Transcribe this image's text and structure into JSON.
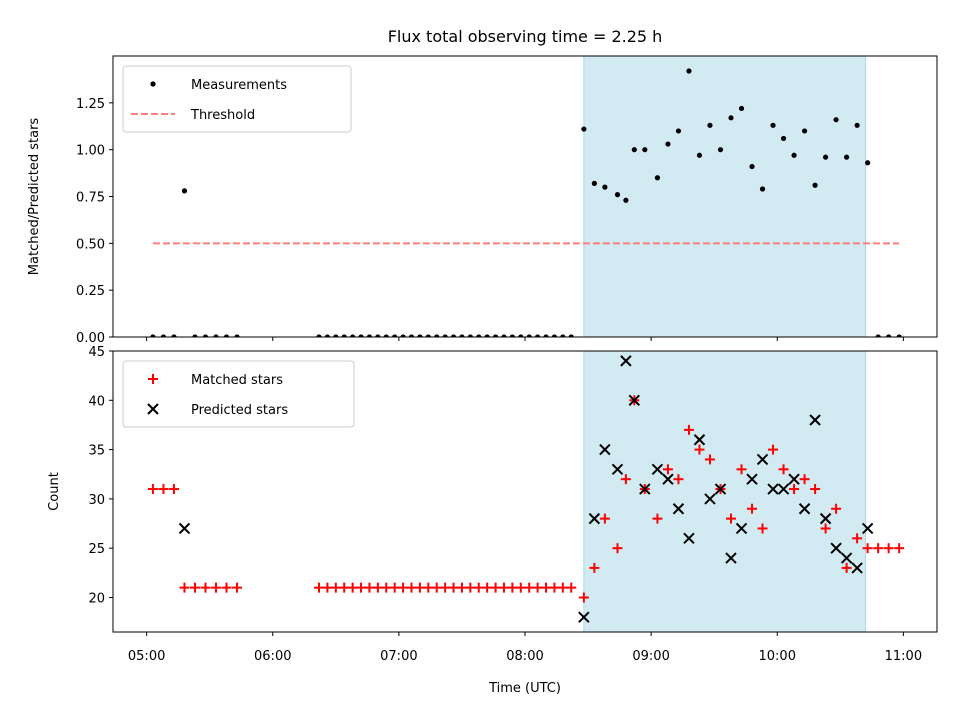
{
  "chart_data": {
    "title": "Flux total observing time = 2.25 h",
    "shaded_region": {
      "start": "08:28",
      "end": "10:42",
      "color": "#add8e6"
    },
    "xlabel": "Time (UTC)",
    "xlim": [
      "04:44",
      "11:16"
    ],
    "x_ticks": [
      "05:00",
      "06:00",
      "07:00",
      "08:00",
      "09:00",
      "10:00",
      "11:00"
    ],
    "x_tick_times": [
      "05:00",
      "06:00",
      "07:00",
      "08:00",
      "09:00",
      "10:00",
      "11:00"
    ],
    "panels": [
      {
        "type": "scatter",
        "ylabel": "Matched/Predicted stars",
        "ylim": [
          0,
          1.5
        ],
        "y_ticks": [
          "0.00",
          "0.25",
          "0.50",
          "0.75",
          "1.00",
          "1.25"
        ],
        "y_tick_values": [
          0,
          0.25,
          0.5,
          0.75,
          1.0,
          1.25
        ],
        "legend": {
          "position": "upper-left",
          "entries": [
            "Measurements",
            "Threshold"
          ]
        },
        "threshold": {
          "name": "Threshold",
          "value": 0.5,
          "x_start": "05:03",
          "x_end": "10:58",
          "color": "#ff7f7f"
        },
        "series": [
          {
            "name": "Measurements",
            "color": "#000000",
            "marker": "dot",
            "x": [
              "05:03",
              "05:08",
              "05:13",
              "05:18",
              "05:23",
              "05:28",
              "05:33",
              "05:38",
              "05:43",
              "06:22",
              "06:26",
              "06:30",
              "06:34",
              "06:38",
              "06:42",
              "06:46",
              "06:50",
              "06:54",
              "06:58",
              "07:02",
              "07:06",
              "07:10",
              "07:14",
              "07:18",
              "07:22",
              "07:26",
              "07:30",
              "07:34",
              "07:38",
              "07:42",
              "07:46",
              "07:50",
              "07:54",
              "07:58",
              "08:02",
              "08:06",
              "08:10",
              "08:14",
              "08:18",
              "08:22",
              "08:28",
              "08:33",
              "08:38",
              "08:44",
              "08:48",
              "08:52",
              "08:57",
              "09:03",
              "09:08",
              "09:13",
              "09:18",
              "09:23",
              "09:28",
              "09:33",
              "09:38",
              "09:43",
              "09:48",
              "09:53",
              "09:58",
              "10:03",
              "10:08",
              "10:13",
              "10:18",
              "10:23",
              "10:28",
              "10:33",
              "10:38",
              "10:43",
              "10:48",
              "10:53",
              "10:58"
            ],
            "y": [
              0,
              0,
              0,
              0.78,
              0,
              0,
              0,
              0,
              0,
              0,
              0,
              0,
              0,
              0,
              0,
              0,
              0,
              0,
              0,
              0,
              0,
              0,
              0,
              0,
              0,
              0,
              0,
              0,
              0,
              0,
              0,
              0,
              0,
              0,
              0,
              0,
              0,
              0,
              0,
              0,
              1.11,
              0.82,
              0.8,
              0.76,
              0.73,
              1.0,
              1.0,
              0.85,
              1.03,
              1.1,
              1.42,
              0.97,
              1.13,
              1.0,
              1.17,
              1.22,
              0.91,
              0.79,
              1.13,
              1.06,
              0.97,
              1.1,
              0.81,
              0.96,
              1.16,
              0.96,
              1.13,
              0.93,
              0,
              0,
              0
            ]
          }
        ]
      },
      {
        "type": "scatter",
        "ylabel": "Count",
        "ylim": [
          16.5,
          45
        ],
        "y_ticks": [
          "20",
          "25",
          "30",
          "35",
          "40",
          "45"
        ],
        "y_tick_values": [
          20,
          25,
          30,
          35,
          40,
          45
        ],
        "legend": {
          "position": "upper-left",
          "entries": [
            "Matched stars",
            "Predicted stars"
          ]
        },
        "series": [
          {
            "name": "Matched stars",
            "color": "#ff0000",
            "marker": "plus",
            "x": [
              "05:03",
              "05:08",
              "05:13",
              "05:18",
              "05:23",
              "05:28",
              "05:33",
              "05:38",
              "05:43",
              "06:22",
              "06:26",
              "06:30",
              "06:34",
              "06:38",
              "06:42",
              "06:46",
              "06:50",
              "06:54",
              "06:58",
              "07:02",
              "07:06",
              "07:10",
              "07:14",
              "07:18",
              "07:22",
              "07:26",
              "07:30",
              "07:34",
              "07:38",
              "07:42",
              "07:46",
              "07:50",
              "07:54",
              "07:58",
              "08:02",
              "08:06",
              "08:10",
              "08:14",
              "08:18",
              "08:22",
              "08:28",
              "08:33",
              "08:38",
              "08:44",
              "08:48",
              "08:52",
              "08:57",
              "09:03",
              "09:08",
              "09:13",
              "09:18",
              "09:23",
              "09:28",
              "09:33",
              "09:38",
              "09:43",
              "09:48",
              "09:53",
              "09:58",
              "10:03",
              "10:08",
              "10:13",
              "10:18",
              "10:23",
              "10:28",
              "10:33",
              "10:38",
              "10:43",
              "10:48",
              "10:53",
              "10:58"
            ],
            "y": [
              31,
              31,
              31,
              21,
              21,
              21,
              21,
              21,
              21,
              21,
              21,
              21,
              21,
              21,
              21,
              21,
              21,
              21,
              21,
              21,
              21,
              21,
              21,
              21,
              21,
              21,
              21,
              21,
              21,
              21,
              21,
              21,
              21,
              21,
              21,
              21,
              21,
              21,
              21,
              21,
              20,
              23,
              28,
              25,
              32,
              40,
              31,
              28,
              33,
              32,
              37,
              35,
              34,
              31,
              28,
              33,
              29,
              27,
              35,
              33,
              31,
              32,
              31,
              27,
              29,
              23,
              26,
              25,
              25,
              25,
              25
            ]
          },
          {
            "name": "Predicted stars",
            "color": "#000000",
            "marker": "x",
            "x": [
              "05:18",
              "08:28",
              "08:33",
              "08:38",
              "08:44",
              "08:48",
              "08:52",
              "08:57",
              "09:03",
              "09:08",
              "09:13",
              "09:18",
              "09:23",
              "09:28",
              "09:33",
              "09:38",
              "09:43",
              "09:48",
              "09:53",
              "09:58",
              "10:03",
              "10:08",
              "10:13",
              "10:18",
              "10:23",
              "10:28",
              "10:33",
              "10:38",
              "10:43"
            ],
            "y": [
              27,
              18,
              28,
              35,
              33,
              44,
              40,
              31,
              33,
              32,
              29,
              26,
              36,
              30,
              31,
              24,
              27,
              32,
              34,
              31,
              31,
              32,
              29,
              38,
              28,
              25,
              24,
              23,
              27
            ]
          }
        ]
      }
    ]
  }
}
